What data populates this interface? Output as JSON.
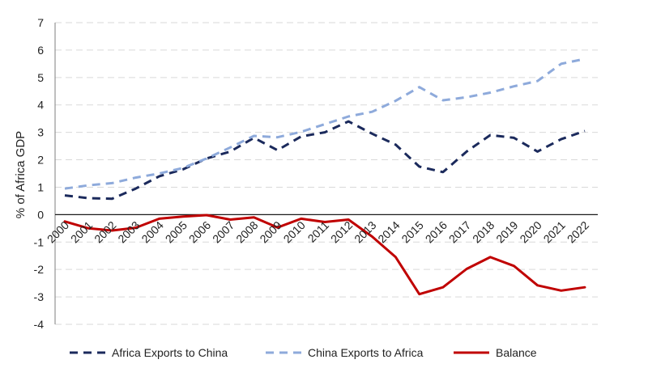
{
  "chart_data": {
    "type": "line",
    "title": "",
    "xlabel": "",
    "ylabel": "% of Africa GDP",
    "ylim": [
      -4,
      7
    ],
    "yticks": [
      "-4",
      "-3",
      "-2",
      "-1",
      "0",
      "1",
      "2",
      "3",
      "4",
      "5",
      "6",
      "7"
    ],
    "grid": "horizontal dashed",
    "legend_position": "bottom",
    "categories": [
      "2000",
      "2001",
      "2002",
      "2003",
      "2004",
      "2005",
      "2006",
      "2007",
      "2008",
      "2009",
      "2010",
      "2011",
      "2012",
      "2013",
      "2014",
      "2015",
      "2016",
      "2017",
      "2018",
      "2019",
      "2020",
      "2021",
      "2022"
    ],
    "series": [
      {
        "name": "Africa Exports to China",
        "color": "#1b2a5c",
        "style": "dashed",
        "values": [
          0.7,
          0.6,
          0.58,
          0.95,
          1.4,
          1.65,
          2.05,
          2.3,
          2.8,
          2.35,
          2.85,
          3.0,
          3.4,
          2.95,
          2.55,
          1.75,
          1.55,
          2.3,
          2.9,
          2.8,
          2.3,
          2.75,
          3.05
        ]
      },
      {
        "name": "China Exports to Africa",
        "color": "#8eaadb",
        "style": "dashed",
        "values": [
          0.95,
          1.07,
          1.15,
          1.35,
          1.5,
          1.7,
          2.05,
          2.45,
          2.87,
          2.82,
          3.02,
          3.3,
          3.58,
          3.75,
          4.15,
          4.65,
          4.17,
          4.28,
          4.45,
          4.68,
          4.87,
          5.5,
          5.68
        ]
      },
      {
        "name": "Balance",
        "color": "#c00000",
        "style": "solid",
        "values": [
          -0.25,
          -0.5,
          -0.58,
          -0.48,
          -0.15,
          -0.07,
          -0.02,
          -0.18,
          -0.1,
          -0.47,
          -0.15,
          -0.27,
          -0.18,
          -0.8,
          -1.55,
          -2.9,
          -2.65,
          -1.98,
          -1.55,
          -1.87,
          -2.58,
          -2.77,
          -2.65
        ]
      }
    ]
  }
}
